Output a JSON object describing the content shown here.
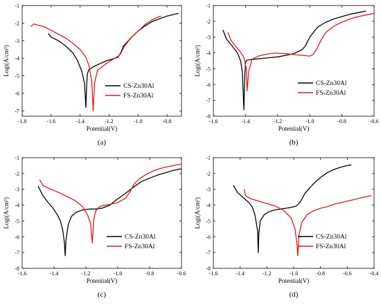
{
  "chart_data": [
    {
      "type": "line",
      "panel_label": "(a)",
      "xlabel": "Potential(V)",
      "ylabel": "Logi(A/cm²)",
      "xlim": [
        -1.8,
        -0.7
      ],
      "ylim": [
        -7.3,
        -1
      ],
      "xticks": [
        "-1.8",
        "-1.6",
        "-1.4",
        "-1.2",
        "-1.0",
        "-0.8"
      ],
      "xtick_values": [
        -1.8,
        -1.6,
        -1.4,
        -1.2,
        -1.0,
        -0.8
      ],
      "yticks": [
        "-7",
        "-6",
        "-5",
        "-4",
        "-3",
        "-2",
        "-1"
      ],
      "ytick_values": [
        -7,
        -6,
        -5,
        -4,
        -3,
        -2,
        -1
      ],
      "legend_position": "right",
      "series": [
        {
          "name": "CS-Zn30Al",
          "color": "#000000",
          "x": [
            -1.62,
            -1.6,
            -1.55,
            -1.5,
            -1.45,
            -1.42,
            -1.39,
            -1.37,
            -1.36,
            -1.355,
            -1.35,
            -1.34,
            -1.32,
            -1.3,
            -1.26,
            -1.22,
            -1.18,
            -1.14,
            -1.12,
            -1.1,
            -1.05,
            -1.0,
            -0.95,
            -0.9,
            -0.85,
            -0.8,
            -0.75,
            -0.72
          ],
          "y": [
            -2.6,
            -2.8,
            -3.0,
            -3.3,
            -3.7,
            -4.1,
            -4.7,
            -5.4,
            -6.8,
            -5.6,
            -4.9,
            -4.65,
            -4.55,
            -4.45,
            -4.3,
            -4.15,
            -4.05,
            -3.95,
            -3.7,
            -3.3,
            -2.85,
            -2.45,
            -2.15,
            -1.9,
            -1.75,
            -1.6,
            -1.5,
            -1.45
          ]
        },
        {
          "name": "FS-Zn30Al",
          "color": "#e8141b",
          "x": [
            -1.74,
            -1.72,
            -1.65,
            -1.58,
            -1.5,
            -1.45,
            -1.4,
            -1.36,
            -1.34,
            -1.32,
            -1.31,
            -1.3,
            -1.28,
            -1.25,
            -1.22,
            -1.18,
            -1.14,
            -1.12,
            -1.1,
            -1.06,
            -1.02,
            -0.98,
            -0.94,
            -0.9,
            -0.86,
            -0.84
          ],
          "y": [
            -2.2,
            -2.05,
            -2.2,
            -2.5,
            -2.85,
            -3.15,
            -3.5,
            -3.95,
            -4.4,
            -5.3,
            -7.0,
            -5.4,
            -4.7,
            -4.5,
            -4.3,
            -4.1,
            -3.9,
            -3.75,
            -3.4,
            -2.95,
            -2.6,
            -2.3,
            -2.0,
            -1.8,
            -1.65,
            -1.6
          ]
        }
      ]
    },
    {
      "type": "line",
      "panel_label": "(b)",
      "xlabel": "Potential(V)",
      "ylabel": "Logi(A/cm²)",
      "xlim": [
        -1.6,
        -0.6
      ],
      "ylim": [
        -8,
        -1
      ],
      "xticks": [
        "-1.6",
        "-1.4",
        "-1.2",
        "-1.0",
        "-0.8",
        "-0.6"
      ],
      "xtick_values": [
        -1.6,
        -1.4,
        -1.2,
        -1.0,
        -0.8,
        -0.6
      ],
      "yticks": [
        "-8",
        "-7",
        "-6",
        "-5",
        "-4",
        "-3",
        "-2",
        "-1"
      ],
      "ytick_values": [
        -8,
        -7,
        -6,
        -5,
        -4,
        -3,
        -2,
        -1
      ],
      "legend_position": "right",
      "series": [
        {
          "name": "CS-Zn30Al",
          "color": "#000000",
          "x": [
            -1.54,
            -1.52,
            -1.48,
            -1.45,
            -1.43,
            -1.42,
            -1.41,
            -1.405,
            -1.4,
            -1.39,
            -1.35,
            -1.3,
            -1.25,
            -1.2,
            -1.15,
            -1.1,
            -1.05,
            -1.03,
            -1.0,
            -0.97,
            -0.95,
            -0.9,
            -0.85,
            -0.8,
            -0.75,
            -0.7,
            -0.65
          ],
          "y": [
            -2.55,
            -3.1,
            -3.6,
            -4.0,
            -4.5,
            -5.2,
            -7.6,
            -5.6,
            -4.6,
            -4.45,
            -4.4,
            -4.35,
            -4.3,
            -4.25,
            -4.15,
            -4.05,
            -3.8,
            -3.6,
            -3.0,
            -2.6,
            -2.35,
            -2.05,
            -1.85,
            -1.7,
            -1.55,
            -1.45,
            -1.35
          ]
        },
        {
          "name": "FS-Zn30Al",
          "color": "#e8141b",
          "x": [
            -1.51,
            -1.49,
            -1.46,
            -1.43,
            -1.41,
            -1.395,
            -1.39,
            -1.38,
            -1.36,
            -1.32,
            -1.28,
            -1.22,
            -1.15,
            -1.1,
            -1.05,
            -1.0,
            -0.98,
            -0.96,
            -0.93,
            -0.9,
            -0.85,
            -0.8,
            -0.75,
            -0.7,
            -0.65,
            -0.6
          ],
          "y": [
            -2.7,
            -3.2,
            -3.6,
            -3.95,
            -4.3,
            -5.0,
            -6.4,
            -5.2,
            -4.4,
            -4.2,
            -4.1,
            -4.0,
            -4.05,
            -4.1,
            -4.15,
            -4.2,
            -4.1,
            -3.8,
            -3.2,
            -2.7,
            -2.3,
            -2.05,
            -1.85,
            -1.7,
            -1.6,
            -1.5
          ]
        }
      ]
    },
    {
      "type": "line",
      "panel_label": "(c)",
      "xlabel": "Potential(V)",
      "ylabel": "Logi(A/cm²)",
      "xlim": [
        -1.6,
        -0.6
      ],
      "ylim": [
        -8,
        -1
      ],
      "xticks": [
        "-1.6",
        "-1.4",
        "-1.2",
        "-1.0",
        "-0.8",
        "-0.6"
      ],
      "xtick_values": [
        -1.6,
        -1.4,
        -1.2,
        -1.0,
        -0.8,
        -0.6
      ],
      "yticks": [
        "-8",
        "-7",
        "-6",
        "-5",
        "-4",
        "-3",
        "-2",
        "-1"
      ],
      "ytick_values": [
        -8,
        -7,
        -6,
        -5,
        -4,
        -3,
        -2,
        -1
      ],
      "legend_position": "right",
      "series": [
        {
          "name": "CS-Zn30Al",
          "color": "#000000",
          "x": [
            -1.5,
            -1.47,
            -1.44,
            -1.41,
            -1.38,
            -1.36,
            -1.345,
            -1.335,
            -1.33,
            -1.325,
            -1.31,
            -1.29,
            -1.26,
            -1.22,
            -1.18,
            -1.14,
            -1.1,
            -1.05,
            -1.0,
            -0.95,
            -0.9,
            -0.85,
            -0.8,
            -0.75,
            -0.7,
            -0.65,
            -0.6
          ],
          "y": [
            -2.8,
            -3.4,
            -3.8,
            -4.15,
            -4.6,
            -5.0,
            -5.6,
            -6.4,
            -7.2,
            -6.2,
            -5.2,
            -4.7,
            -4.45,
            -4.3,
            -4.25,
            -4.25,
            -4.2,
            -4.0,
            -3.6,
            -3.25,
            -2.85,
            -2.5,
            -2.3,
            -2.1,
            -1.95,
            -1.8,
            -1.7
          ]
        },
        {
          "name": "FS-Zn30Al",
          "color": "#e8141b",
          "x": [
            -1.49,
            -1.47,
            -1.42,
            -1.37,
            -1.32,
            -1.27,
            -1.22,
            -1.19,
            -1.17,
            -1.16,
            -1.155,
            -1.15,
            -1.14,
            -1.12,
            -1.1,
            -1.05,
            -1.0,
            -0.95,
            -0.92,
            -0.9,
            -0.86,
            -0.82,
            -0.78,
            -0.74,
            -0.7,
            -0.65,
            -0.6
          ],
          "y": [
            -2.4,
            -2.75,
            -3.0,
            -3.2,
            -3.45,
            -3.7,
            -4.1,
            -4.6,
            -5.2,
            -6.4,
            -5.6,
            -4.9,
            -4.4,
            -4.15,
            -4.05,
            -3.95,
            -3.85,
            -3.55,
            -3.1,
            -2.7,
            -2.3,
            -2.05,
            -1.85,
            -1.7,
            -1.6,
            -1.5,
            -1.4
          ]
        }
      ]
    },
    {
      "type": "line",
      "panel_label": "(d)",
      "xlabel": "Potential(V)",
      "ylabel": "Logi(A/cm²)",
      "xlim": [
        -1.6,
        -0.4
      ],
      "ylim": [
        -8,
        -1
      ],
      "xticks": [
        "-1.6",
        "-1.4",
        "-1.2",
        "-1.0",
        "-0.8",
        "-0.6",
        "-0.4"
      ],
      "xtick_values": [
        -1.6,
        -1.4,
        -1.2,
        -1.0,
        -0.8,
        -0.6,
        -0.4
      ],
      "yticks": [
        "-8",
        "-7",
        "-6",
        "-5",
        "-4",
        "-3",
        "-2",
        "-1"
      ],
      "ytick_values": [
        -8,
        -7,
        -6,
        -5,
        -4,
        -3,
        -2,
        -1
      ],
      "legend_position": "right",
      "series": [
        {
          "name": "CS-Zn30Al",
          "color": "#000000",
          "x": [
            -1.45,
            -1.42,
            -1.38,
            -1.34,
            -1.31,
            -1.29,
            -1.27,
            -1.265,
            -1.26,
            -1.25,
            -1.22,
            -1.18,
            -1.14,
            -1.1,
            -1.06,
            -1.02,
            -0.98,
            -0.95,
            -0.92,
            -0.88,
            -0.84,
            -0.8,
            -0.75,
            -0.7,
            -0.65,
            -0.6,
            -0.57
          ],
          "y": [
            -2.75,
            -3.2,
            -3.5,
            -3.8,
            -4.1,
            -4.6,
            -5.6,
            -7.0,
            -5.8,
            -5.0,
            -4.6,
            -4.4,
            -4.3,
            -4.25,
            -4.2,
            -4.15,
            -4.05,
            -3.8,
            -3.3,
            -2.9,
            -2.55,
            -2.25,
            -1.95,
            -1.75,
            -1.6,
            -1.5,
            -1.45
          ]
        },
        {
          "name": "FS-Zn30Al",
          "color": "#e8141b",
          "x": [
            -1.37,
            -1.36,
            -1.32,
            -1.26,
            -1.2,
            -1.14,
            -1.08,
            -1.02,
            -0.99,
            -0.975,
            -0.97,
            -0.96,
            -0.94,
            -0.9,
            -0.85,
            -0.8,
            -0.75,
            -0.7,
            -0.65,
            -0.6,
            -0.55,
            -0.5,
            -0.45,
            -0.42
          ],
          "y": [
            -3.0,
            -3.4,
            -3.6,
            -3.75,
            -3.9,
            -4.05,
            -4.3,
            -4.8,
            -5.5,
            -6.5,
            -7.2,
            -5.9,
            -5.1,
            -4.6,
            -4.35,
            -4.2,
            -4.1,
            -3.95,
            -3.85,
            -3.75,
            -3.65,
            -3.55,
            -3.45,
            -3.4
          ]
        }
      ]
    }
  ]
}
